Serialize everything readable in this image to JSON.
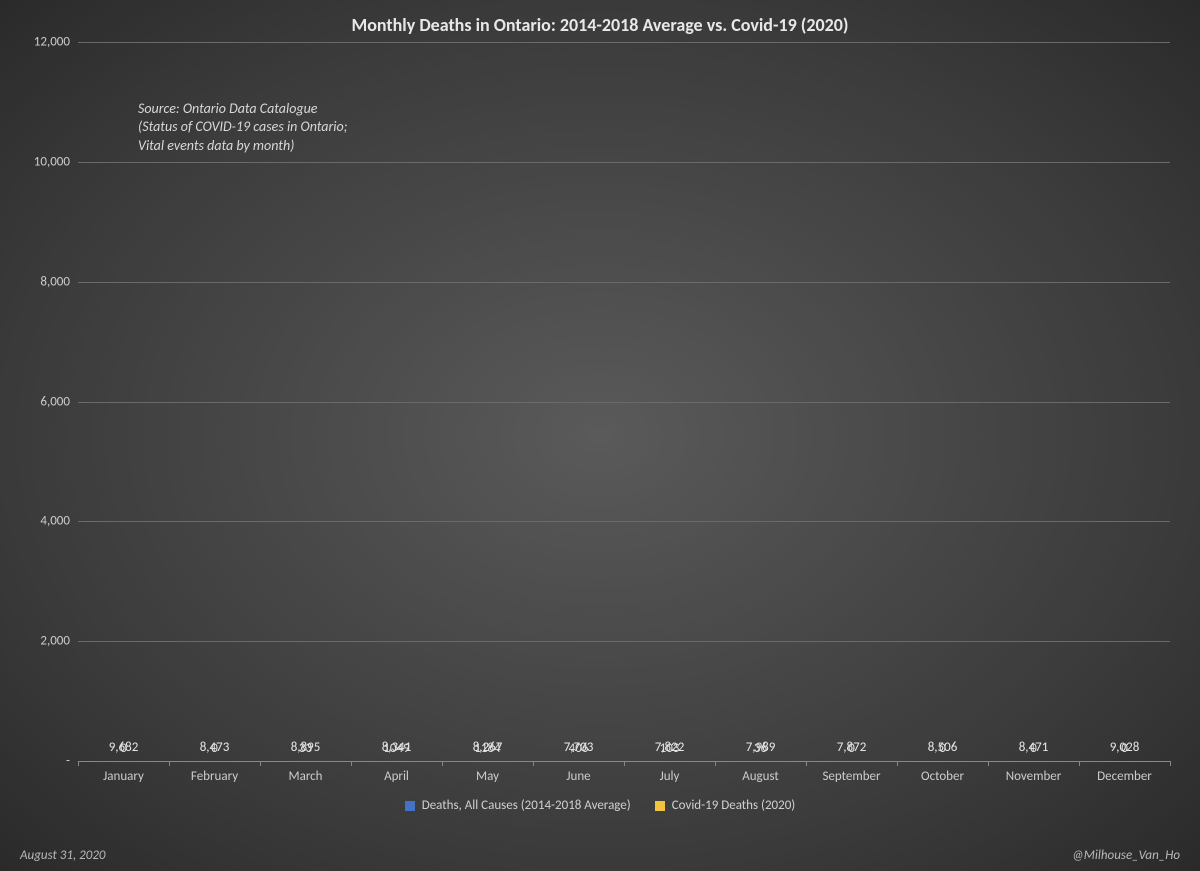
{
  "chart": {
    "type": "stacked-bar",
    "title": "Monthly Deaths in Ontario: 2014-2018 Average vs. Covid-19 (2020)",
    "title_fontsize": 18,
    "background_gradient": [
      "#5a5a5a",
      "#3a3a3a",
      "#2a2a2a"
    ],
    "text_color": "#d0d0d0",
    "grid_color": "#6a6a6a",
    "axis_color": "#888888",
    "source_note": "Source: Ontario Data Catalogue\n(Status of COVID-19 cases in Ontario;\nVital events data by month)",
    "source_fontsize": 14,
    "date_label": "August 31, 2020",
    "credit_label": "@Milhouse_Van_Ho",
    "ylim": [
      0,
      12000
    ],
    "ytick_step": 2000,
    "ytick_labels": [
      "-",
      "2,000",
      "4,000",
      "6,000",
      "8,000",
      "10,000",
      "12,000"
    ],
    "label_fontsize": 13,
    "bar_width_pct": 68,
    "categories": [
      "January",
      "February",
      "March",
      "April",
      "May",
      "June",
      "July",
      "August",
      "September",
      "October",
      "November",
      "December"
    ],
    "series": [
      {
        "name": "Deaths, All Causes (2014-2018 Average)",
        "color": "#4472c4",
        "values": [
          9682,
          8473,
          8895,
          8341,
          8267,
          7703,
          7822,
          7989,
          7872,
          8506,
          8471,
          9028
        ],
        "value_labels": [
          "9,682",
          "8,473",
          "8,895",
          "8,341",
          "8,267",
          "7,703",
          "7,822",
          "7,989",
          "7,872",
          "8,506",
          "8,471",
          "9,028"
        ],
        "label_position": "inside-bottom",
        "label_color": "#e8e8e8"
      },
      {
        "name": "Covid-19 Deaths (2020)",
        "color": "#f2c43d",
        "values": [
          0,
          0,
          33,
          1049,
          1184,
          406,
          103,
          36,
          0,
          0,
          0,
          0
        ],
        "value_labels": [
          "0",
          "0",
          "33",
          "1049",
          "1184",
          "406",
          "103",
          "36",
          "0",
          "0",
          "0",
          "0"
        ],
        "label_position": "above",
        "label_color": "#e0e0e0"
      }
    ],
    "legend_position": "bottom"
  }
}
